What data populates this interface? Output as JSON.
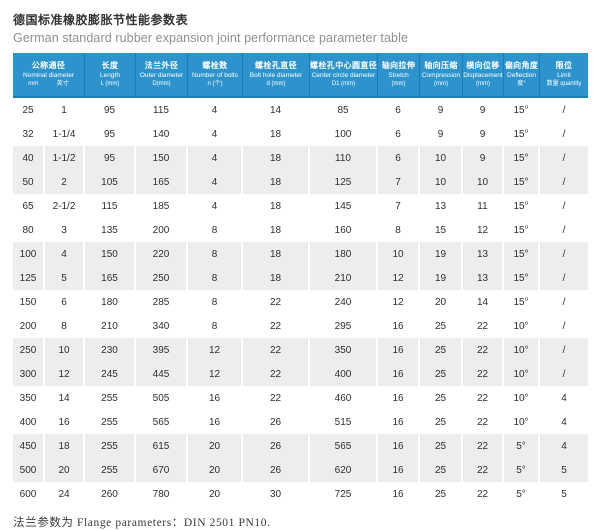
{
  "title": {
    "zh": "德国标准橡胶膨胀节性能参数表",
    "en": "German standard rubber expansion joint performance parameter table"
  },
  "footnote": "法兰参数为 Flange parameters：DIN 2501 PN10.",
  "colors": {
    "header_bg": "#2D93CC",
    "header_divider": "#1E7DB5",
    "row_alt_bg": "#EDEDED",
    "text": "#2F2F2F"
  },
  "table": {
    "header": [
      {
        "zh": "公称通径",
        "en": "Nominal diameter",
        "units": [
          "mm",
          "英寸"
        ],
        "colspan": 2
      },
      {
        "zh": "长度",
        "en": "Length",
        "units": [
          "L (mm)"
        ],
        "colspan": 1
      },
      {
        "zh": "法兰外径",
        "en": "Outer diameter",
        "units": [
          "D(mm)"
        ],
        "colspan": 1
      },
      {
        "zh": "螺栓数",
        "en": "Number of bolts",
        "units": [
          "n (个)"
        ],
        "colspan": 1
      },
      {
        "zh": "螺栓孔直径",
        "en": "Bolt hole diameter",
        "units": [
          "d (mm)"
        ],
        "colspan": 1
      },
      {
        "zh": "螺栓孔中心圆直径",
        "en": "Center circle diameter",
        "units": [
          "D1 (mm)"
        ],
        "colspan": 1
      },
      {
        "zh": "轴向拉伸",
        "en": "Stretch",
        "units": [
          "(mm)"
        ],
        "colspan": 1
      },
      {
        "zh": "轴向压缩",
        "en": "Compression",
        "units": [
          "(mm)"
        ],
        "colspan": 1
      },
      {
        "zh": "横向位移",
        "en": "Displacement",
        "units": [
          "(mm)"
        ],
        "colspan": 1
      },
      {
        "zh": "偏向角度",
        "en": "Deflection",
        "units": [
          "度°"
        ],
        "colspan": 1
      },
      {
        "zh": "限位",
        "en": "Limit",
        "units": [
          "数量 quantity"
        ],
        "colspan": 1
      }
    ],
    "rows": [
      [
        "25",
        "1",
        "95",
        "115",
        "4",
        "14",
        "85",
        "6",
        "9",
        "9",
        "15°",
        "/"
      ],
      [
        "32",
        "1-1/4",
        "95",
        "140",
        "4",
        "18",
        "100",
        "6",
        "9",
        "9",
        "15°",
        "/"
      ],
      [
        "40",
        "1-1/2",
        "95",
        "150",
        "4",
        "18",
        "110",
        "6",
        "10",
        "9",
        "15°",
        "/"
      ],
      [
        "50",
        "2",
        "105",
        "165",
        "4",
        "18",
        "125",
        "7",
        "10",
        "10",
        "15°",
        "/"
      ],
      [
        "65",
        "2-1/2",
        "115",
        "185",
        "4",
        "18",
        "145",
        "7",
        "13",
        "11",
        "15°",
        "/"
      ],
      [
        "80",
        "3",
        "135",
        "200",
        "8",
        "18",
        "160",
        "8",
        "15",
        "12",
        "15°",
        "/"
      ],
      [
        "100",
        "4",
        "150",
        "220",
        "8",
        "18",
        "180",
        "10",
        "19",
        "13",
        "15°",
        "/"
      ],
      [
        "125",
        "5",
        "165",
        "250",
        "8",
        "18",
        "210",
        "12",
        "19",
        "13",
        "15°",
        "/"
      ],
      [
        "150",
        "6",
        "180",
        "285",
        "8",
        "22",
        "240",
        "12",
        "20",
        "14",
        "15°",
        "/"
      ],
      [
        "200",
        "8",
        "210",
        "340",
        "8",
        "22",
        "295",
        "16",
        "25",
        "22",
        "10°",
        "/"
      ],
      [
        "250",
        "10",
        "230",
        "395",
        "12",
        "22",
        "350",
        "16",
        "25",
        "22",
        "10°",
        "/"
      ],
      [
        "300",
        "12",
        "245",
        "445",
        "12",
        "22",
        "400",
        "16",
        "25",
        "22",
        "10°",
        "/"
      ],
      [
        "350",
        "14",
        "255",
        "505",
        "16",
        "22",
        "460",
        "16",
        "25",
        "22",
        "10°",
        "4"
      ],
      [
        "400",
        "16",
        "255",
        "565",
        "16",
        "26",
        "515",
        "16",
        "25",
        "22",
        "10°",
        "4"
      ],
      [
        "450",
        "18",
        "255",
        "615",
        "20",
        "26",
        "565",
        "16",
        "25",
        "22",
        "5°",
        "4"
      ],
      [
        "500",
        "20",
        "255",
        "670",
        "20",
        "26",
        "620",
        "16",
        "25",
        "22",
        "5°",
        "5"
      ],
      [
        "600",
        "24",
        "260",
        "780",
        "20",
        "30",
        "725",
        "16",
        "25",
        "22",
        "5°",
        "5"
      ]
    ]
  }
}
